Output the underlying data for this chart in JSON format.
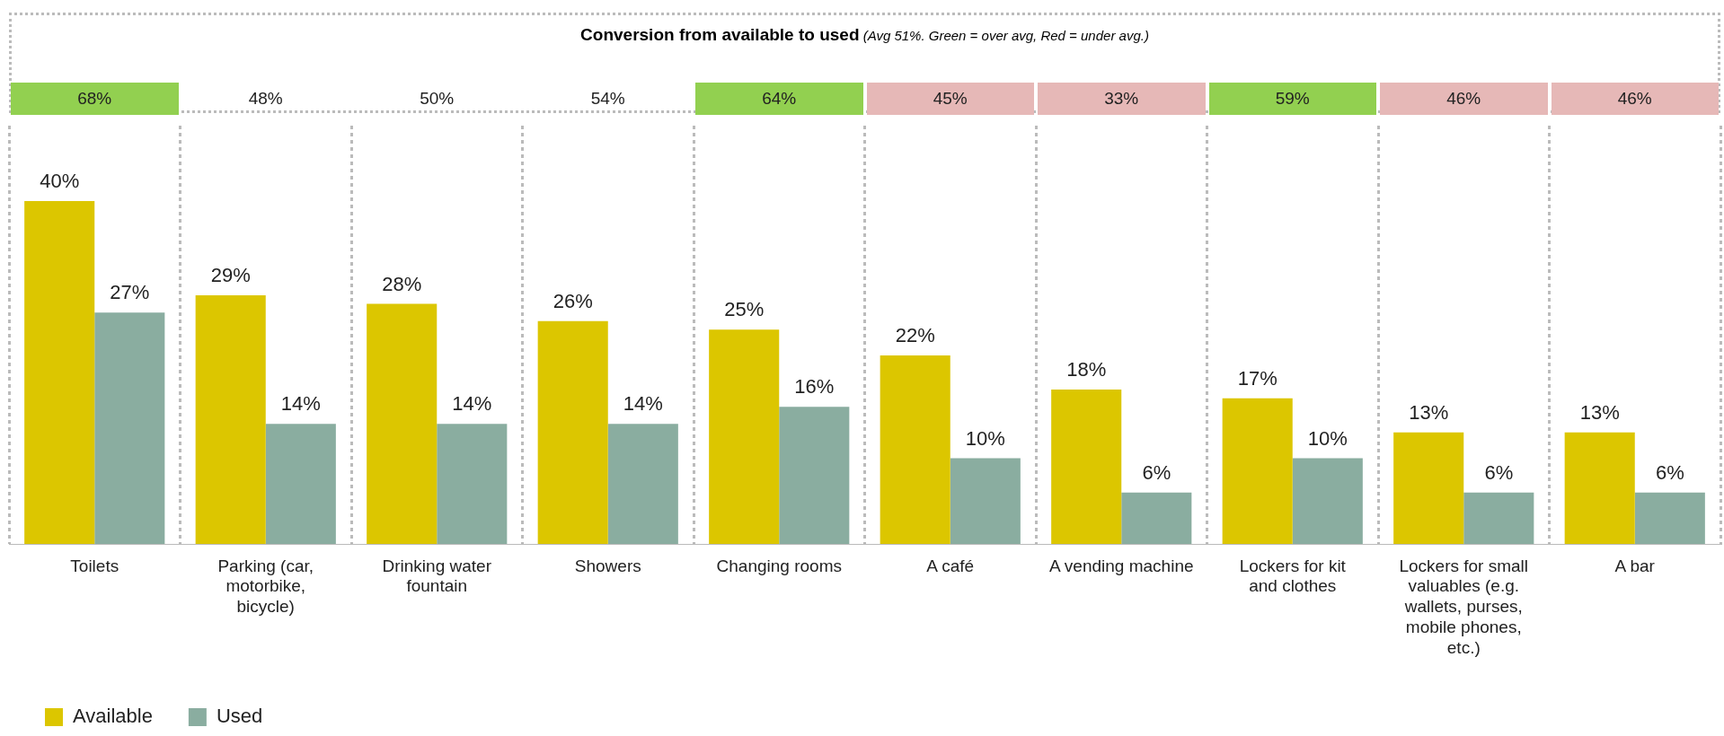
{
  "chart_data": {
    "type": "bar",
    "title": "Conversion from available to used",
    "subtitle": "(Avg 51%. Green = over avg, Red = under avg.)",
    "categories": [
      "Toilets",
      "Parking (car, motorbike, bicycle)",
      "Drinking water fountain",
      "Showers",
      "Changing rooms",
      "A café",
      "A vending machine",
      "Lockers for kit and clothes",
      "Lockers for small valuables (e.g. wallets, purses, mobile phones, etc.)",
      "A bar"
    ],
    "series": [
      {
        "name": "Available",
        "color": "#dcc600",
        "values": [
          40,
          29,
          28,
          26,
          25,
          22,
          18,
          17,
          13,
          13
        ],
        "value_labels": [
          "40%",
          "29%",
          "28%",
          "26%",
          "25%",
          "22%",
          "18%",
          "17%",
          "13%",
          "13%"
        ]
      },
      {
        "name": "Used",
        "color": "#8aada0",
        "values": [
          27,
          14,
          14,
          14,
          16,
          10,
          6,
          10,
          6,
          6
        ],
        "value_labels": [
          "27%",
          "14%",
          "14%",
          "14%",
          "16%",
          "10%",
          "6%",
          "10%",
          "6%",
          "6%"
        ]
      }
    ],
    "annotations": [
      "68%",
      "48%",
      "50%",
      "54%",
      "64%",
      "45%",
      "33%",
      "59%",
      "46%",
      "46%"
    ],
    "grid": "x",
    "legend": "bottom left"
  }
}
